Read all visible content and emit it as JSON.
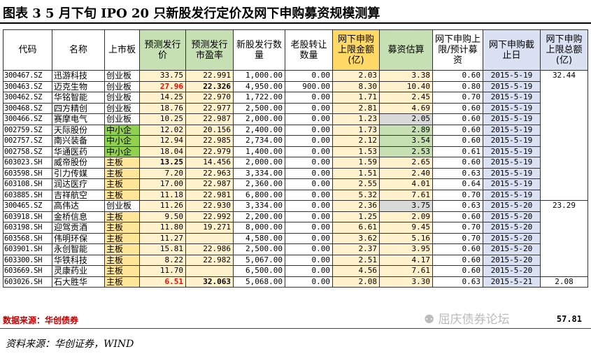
{
  "title": "图表 3    5 月下旬 IPO 20 只新股发行定价及网下申购募资规模测算",
  "columns": [
    "代码",
    "名称",
    "上市板",
    "预测发行价",
    "预测发行市盈率",
    "新股发行数量",
    "老股转让数量",
    "网下申购上限金额(亿)",
    "募资估算",
    "网下申购上限/预计募资",
    "网下申购截止日",
    "网下申购上限总额(亿)"
  ],
  "rows": [
    {
      "code": "300467.SZ",
      "name": "迅游科技",
      "board": "创业板",
      "price": "33.75",
      "pe": "22.991",
      "new_shares": "1,000.00",
      "old_shares": "0.00",
      "cap": "2.03",
      "raise": "3.38",
      "ratio": "0.60",
      "date": "2015-5-19"
    },
    {
      "code": "300463.SZ",
      "name": "迈克生物",
      "board": "创业板",
      "price": "27.96",
      "pe": "22.326",
      "new_shares": "4,950.00",
      "old_shares": "900.00",
      "cap": "8.30",
      "raise": "10.40",
      "ratio": "0.80",
      "date": "2015-5-19"
    },
    {
      "code": "300462.SZ",
      "name": "华铭智能",
      "board": "创业板",
      "price": "14.25",
      "pe": "22.970",
      "new_shares": "1,722.00",
      "old_shares": "0.00",
      "cap": "1.71",
      "raise": "2.45",
      "ratio": "0.70",
      "date": "2015-5-19"
    },
    {
      "code": "300468.SZ",
      "name": "四方精创",
      "board": "创业板",
      "price": "18.76",
      "pe": "22.977",
      "new_shares": "2,500.00",
      "old_shares": "0.00",
      "cap": "2.81",
      "raise": "4.69",
      "ratio": "0.60",
      "date": "2015-5-19"
    },
    {
      "code": "300466.SZ",
      "name": "赛摩电气",
      "board": "创业板",
      "price": "10.25",
      "pe": "22.987",
      "new_shares": "2,000.00",
      "old_shares": "0.00",
      "cap": "1.23",
      "raise": "2.05",
      "ratio": "0.60",
      "date": "2015-5-19"
    },
    {
      "code": "002759.SZ",
      "name": "天际股份",
      "board": "中小企",
      "price": "12.02",
      "pe": "20.156",
      "new_shares": "2,400.00",
      "old_shares": "0.00",
      "cap": "1.73",
      "raise": "2.89",
      "ratio": "0.60",
      "date": "2015-5-19"
    },
    {
      "code": "002757.SZ",
      "name": "南兴装备",
      "board": "中小企",
      "price": "12.94",
      "pe": "22.985",
      "new_shares": "2,734.00",
      "old_shares": "0.00",
      "cap": "2.12",
      "raise": "3.54",
      "ratio": "0.60",
      "date": "2015-5-19"
    },
    {
      "code": "002758.SZ",
      "name": "华通医药",
      "board": "中小企",
      "price": "18.04",
      "pe": "22.979",
      "new_shares": "1,400.00",
      "old_shares": "0.00",
      "cap": "1.53",
      "raise": "2.53",
      "ratio": "0.61",
      "date": "2015-5-19"
    },
    {
      "code": "603023.SH",
      "name": "威帝股份",
      "board": "主板",
      "price": "13.25",
      "pe": "14.456",
      "new_shares": "2,000.00",
      "old_shares": "0.00",
      "cap": "1.59",
      "raise": "2.65",
      "ratio": "0.60",
      "date": "2015-5-19"
    },
    {
      "code": "603598.SH",
      "name": "引力传媒",
      "board": "主板",
      "price": "7.20",
      "pe": "22.963",
      "new_shares": "3,334.00",
      "old_shares": "0.00",
      "cap": "1.51",
      "raise": "2.40",
      "ratio": "0.63",
      "date": "2015-5-19"
    },
    {
      "code": "603108.SH",
      "name": "润达医疗",
      "board": "主板",
      "price": "17.00",
      "pe": "22.987",
      "new_shares": "2,360.00",
      "old_shares": "0.00",
      "cap": "2.55",
      "raise": "4.01",
      "ratio": "0.64",
      "date": "2015-5-19"
    },
    {
      "code": "603885.SH",
      "name": "吉祥航空",
      "board": "主板",
      "price": "11.18",
      "pe": "22.981",
      "new_shares": "6,800.00",
      "old_shares": "0.00",
      "cap": "5.32",
      "raise": "7.61",
      "ratio": "0.70",
      "date": "2015-5-19"
    },
    {
      "code": "300465.SZ",
      "name": "高伟达",
      "board": "创业板",
      "price": "11.26",
      "pe": "22.930",
      "new_shares": "3,334.00",
      "old_shares": "0.00",
      "cap": "2.36",
      "raise": "3.75",
      "ratio": "0.63",
      "date": "2015-5-20"
    },
    {
      "code": "603918.SH",
      "name": "金桥信息",
      "board": "主板",
      "price": "9.50",
      "pe": "22.992",
      "new_shares": "2,200.00",
      "old_shares": "0.00",
      "cap": "1.25",
      "raise": "2.09",
      "ratio": "0.60",
      "date": "2015-5-20"
    },
    {
      "code": "603198.SH",
      "name": "迎驾贡酒",
      "board": "主板",
      "price": "11.80",
      "pe": "19.271",
      "new_shares": "8,000.00",
      "old_shares": "0.00",
      "cap": "6.61",
      "raise": "9.45",
      "ratio": "0.70",
      "date": "2015-5-20"
    },
    {
      "code": "603568.SH",
      "name": "伟明环保",
      "board": "主板",
      "price": "11.27",
      "pe": "",
      "new_shares": "4,580.00",
      "old_shares": "0.00",
      "cap": "3.62",
      "raise": "5.16",
      "ratio": "0.70",
      "date": "2015-5-20"
    },
    {
      "code": "603901.SH",
      "name": "永创智能",
      "board": "主板",
      "price": "15.81",
      "pe": "22.986",
      "new_shares": "2,500.00",
      "old_shares": "0.00",
      "cap": "2.37",
      "raise": "3.95",
      "ratio": "0.60",
      "date": "2015-5-20"
    },
    {
      "code": "603300.SH",
      "name": "华铁科技",
      "board": "主板",
      "price": "8.22",
      "pe": "22.982",
      "new_shares": "5,067.00",
      "old_shares": "0.00",
      "cap": "2.51",
      "raise": "4.17",
      "ratio": "0.60",
      "date": "2015-5-20"
    },
    {
      "code": "603669.SH",
      "name": "灵康药业",
      "board": "主板",
      "price": "11.70",
      "pe": "",
      "new_shares": "6,500.00",
      "old_shares": "0.00",
      "cap": "4.56",
      "raise": "7.61",
      "ratio": "0.60",
      "date": "2015-5-20"
    },
    {
      "code": "603026.SH",
      "name": "石大胜华",
      "board": "主板",
      "price": "6.51",
      "pe": "32.063",
      "new_shares": "5,068.00",
      "old_shares": "0.00",
      "cap": "2.08",
      "raise": "3.30",
      "ratio": "0.63",
      "date": "2015-5-21"
    }
  ],
  "group_totals": [
    "32.44",
    "23.29",
    "2.08"
  ],
  "grand_total": "57.81",
  "table_source": "数据来源：华创债券",
  "watermark": "屈庆债券论坛",
  "footer_source": "资料来源：华创证券，WIND",
  "colors": {
    "header_green": "#c6e0b4",
    "header_yellow": "#ffd966",
    "header_blue": "#d9e1f2",
    "highlight_red": "#ff0000"
  }
}
